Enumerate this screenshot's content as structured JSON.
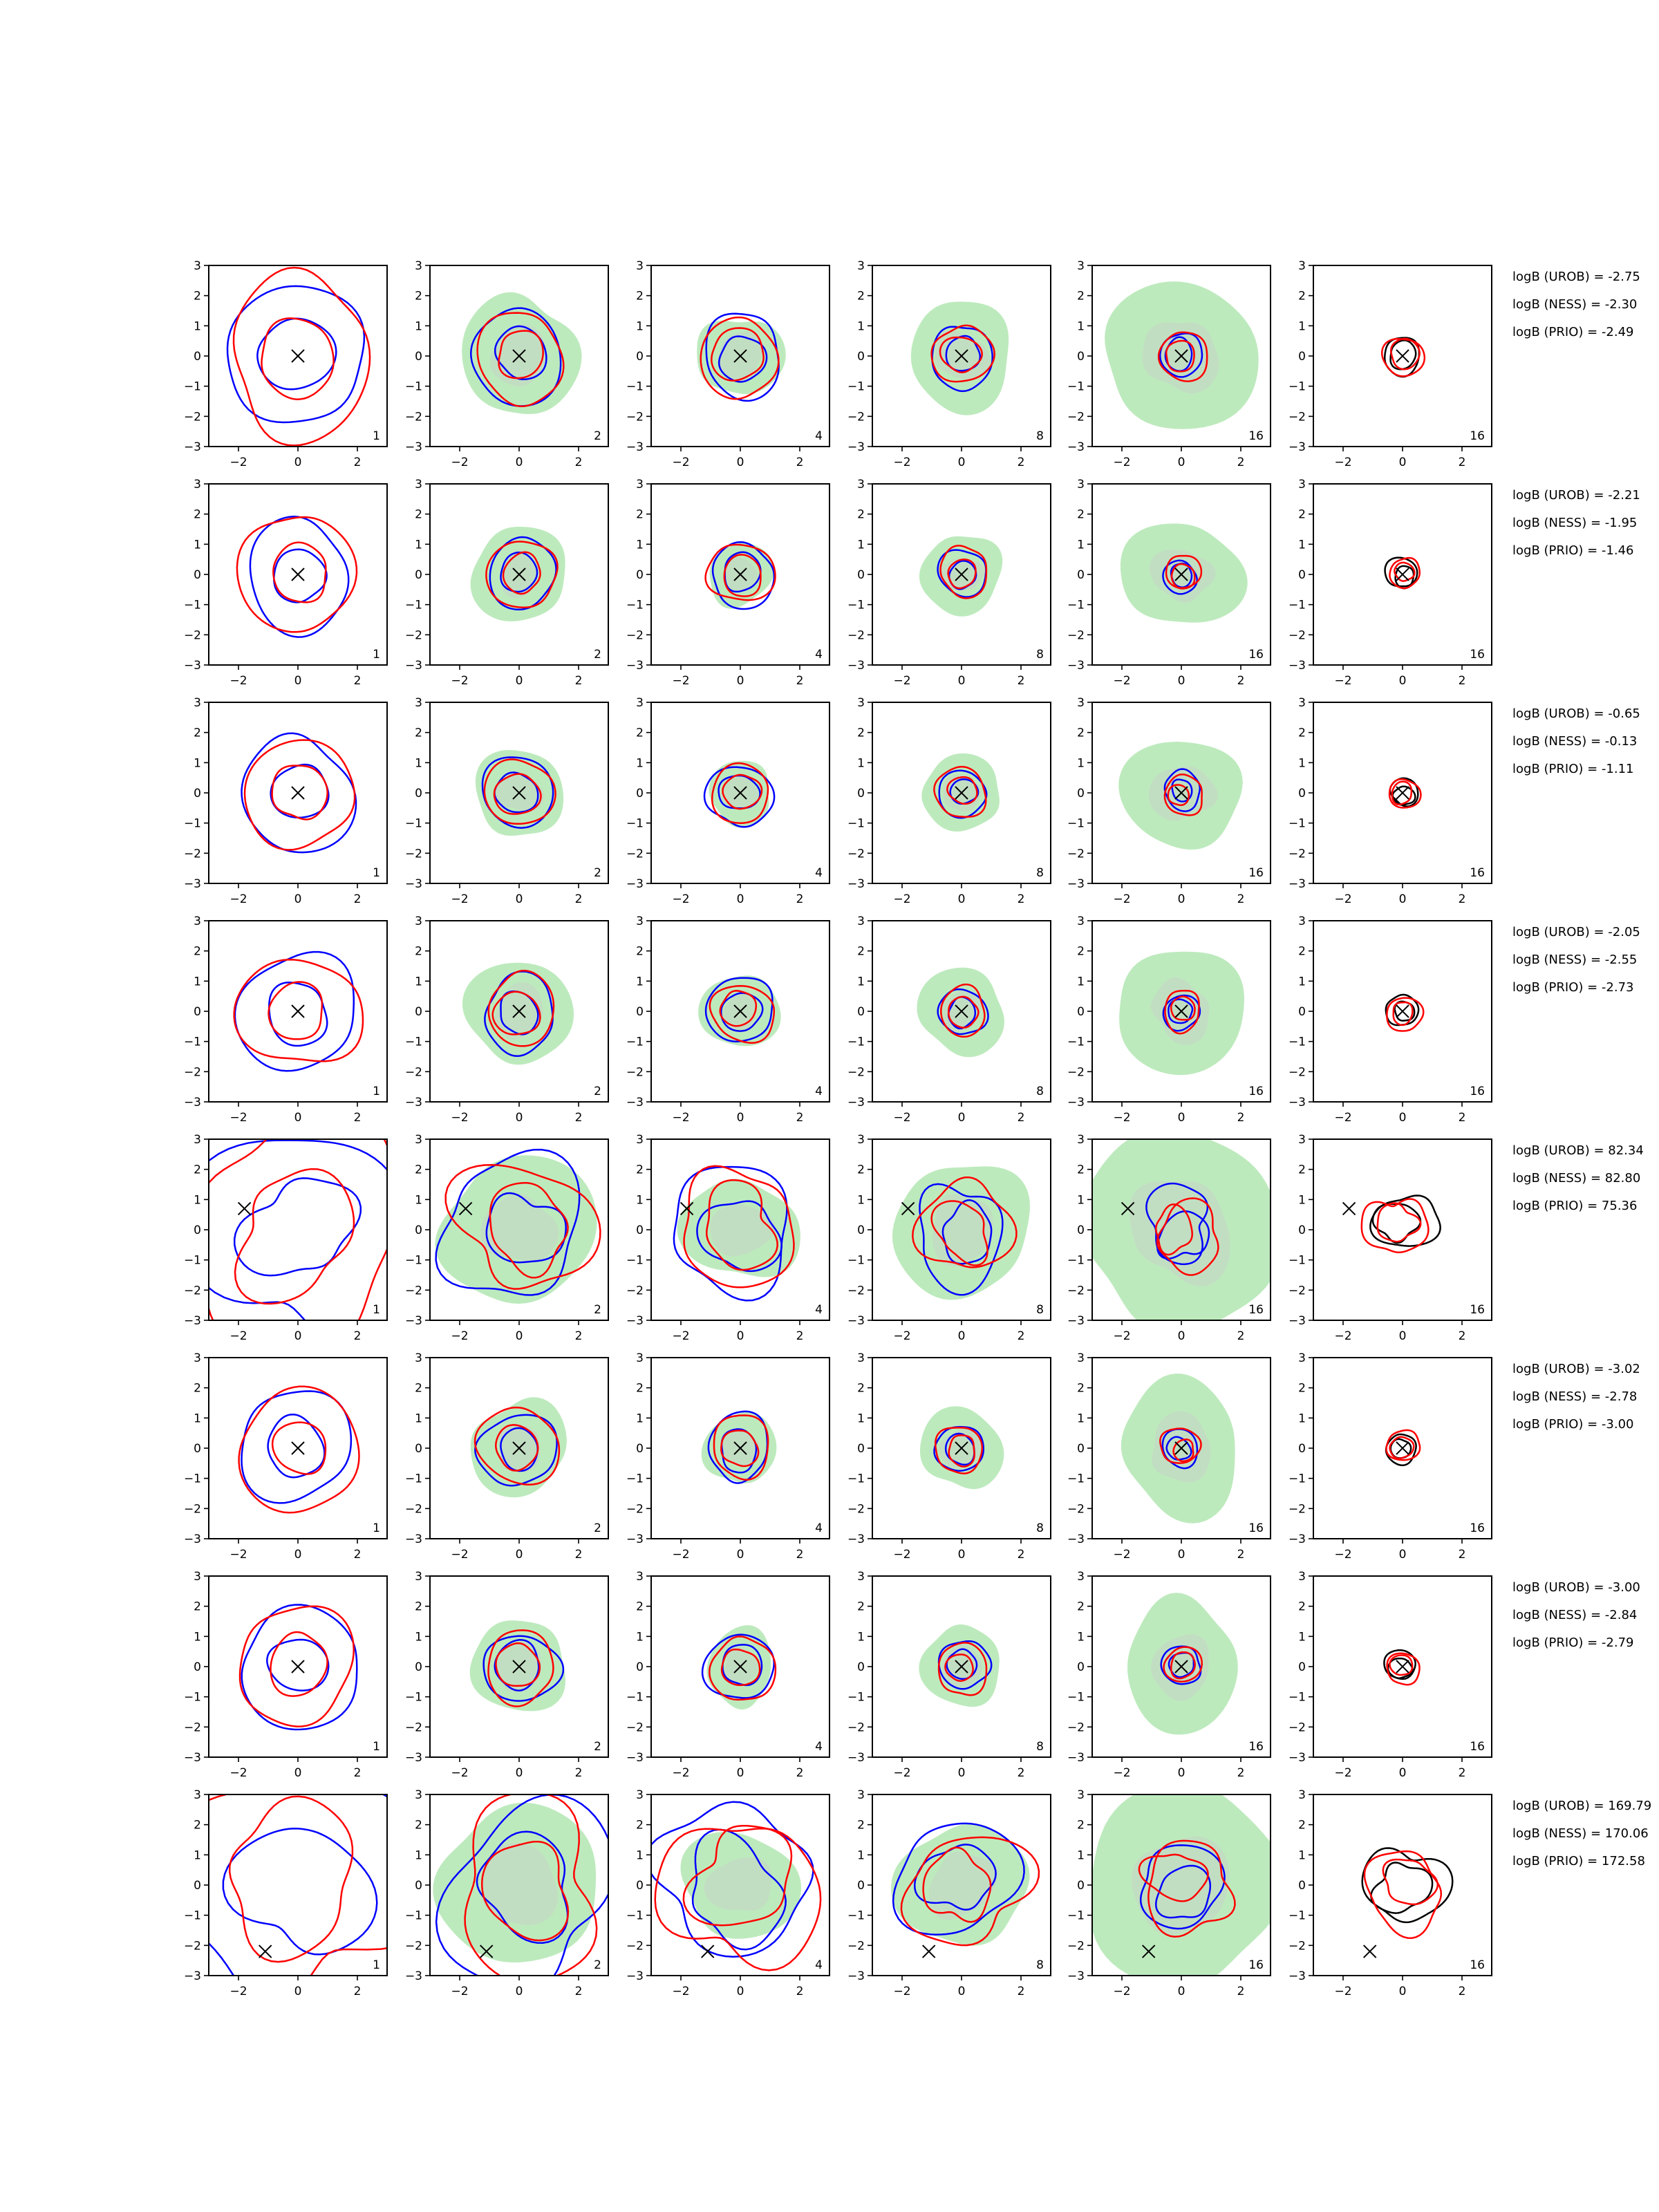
{
  "chart_data": {
    "type": "contour-grid",
    "rows": 8,
    "cols": 6,
    "xlim": [
      -3,
      3
    ],
    "ylim": [
      -3,
      3
    ],
    "xticks": [
      -2,
      0,
      2
    ],
    "yticks": [
      3,
      2,
      1,
      0,
      -1,
      -2,
      -3
    ],
    "xtick_labels": [
      "−2",
      "0",
      "2"
    ],
    "ytick_labels": [
      "3",
      "2",
      "1",
      "0",
      "−1",
      "−2",
      "−3"
    ],
    "column_counts": [
      "1",
      "2",
      "4",
      "8",
      "16",
      "16"
    ],
    "column_has_fill": [
      false,
      true,
      true,
      true,
      true,
      false
    ],
    "column_series": [
      [
        "blue",
        "red"
      ],
      [
        "blue",
        "red"
      ],
      [
        "blue",
        "red"
      ],
      [
        "blue",
        "red"
      ],
      [
        "blue",
        "red"
      ],
      [
        "black",
        "red"
      ]
    ],
    "colors": {
      "blue": "#0000ff",
      "red": "#ff0000",
      "black": "#000000",
      "fill": "#bdeabd",
      "fill_inner": "#c5d8c5"
    },
    "panels": [
      {
        "truth": [
          0,
          0
        ],
        "scale": 1.0,
        "logB": {
          "UROB": "logB (UROB) = -2.75",
          "NESS": "logB (NESS) = -2.30",
          "PRIO": "logB (PRIO) = -2.49"
        }
      },
      {
        "truth": [
          0,
          0
        ],
        "scale": 0.75,
        "logB": {
          "UROB": "logB (UROB) = -2.21",
          "NESS": "logB (NESS) = -1.95",
          "PRIO": "logB (PRIO) = -1.46"
        }
      },
      {
        "truth": [
          0,
          0
        ],
        "scale": 0.75,
        "logB": {
          "UROB": "logB (UROB) = -0.65",
          "NESS": "logB (NESS) = -0.13",
          "PRIO": "logB (PRIO) = -1.11"
        }
      },
      {
        "truth": [
          0,
          0
        ],
        "scale": 0.8,
        "logB": {
          "UROB": "logB (UROB) = -2.05",
          "NESS": "logB (NESS) = -2.55",
          "PRIO": "logB (PRIO) = -2.73"
        }
      },
      {
        "truth": [
          -1.8,
          0.7
        ],
        "scale": 1.3,
        "logB": {
          "UROB": "logB (UROB) = 82.34",
          "NESS": "logB (NESS) = 82.80",
          "PRIO": "logB (PRIO) = 75.36"
        }
      },
      {
        "truth": [
          0,
          0
        ],
        "scale": 0.8,
        "logB": {
          "UROB": "logB (UROB) = -3.02",
          "NESS": "logB (NESS) = -2.78",
          "PRIO": "logB (PRIO) = -3.00"
        }
      },
      {
        "truth": [
          0,
          0
        ],
        "scale": 0.8,
        "logB": {
          "UROB": "logB (UROB) = -3.00",
          "NESS": "logB (NESS) = -2.84",
          "PRIO": "logB (PRIO) = -2.79"
        }
      },
      {
        "truth": [
          -1.1,
          -2.2
        ],
        "scale": 1.7,
        "logB": {
          "UROB": "logB (UROB) = 169.79",
          "NESS": "logB (NESS) = 170.06",
          "PRIO": "logB (PRIO) = 172.58"
        }
      }
    ]
  }
}
